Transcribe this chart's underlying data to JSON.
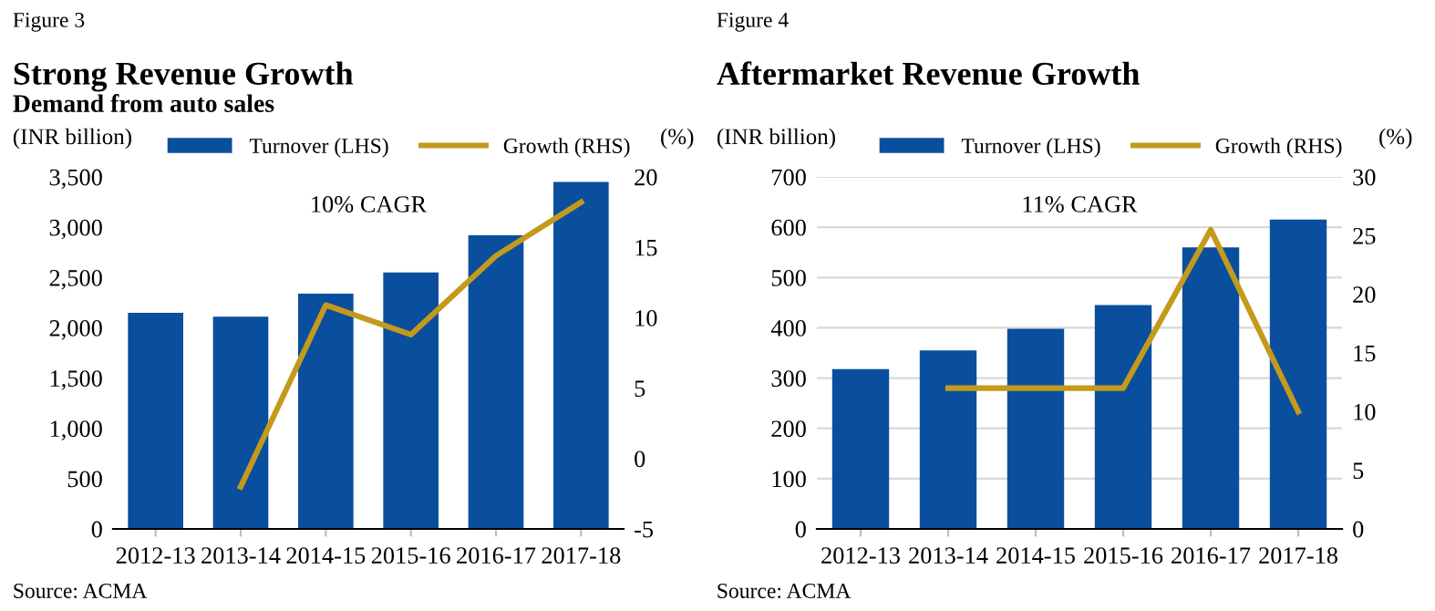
{
  "chart_data": [
    {
      "type": "bar",
      "title": "Strong Revenue Growth",
      "subtitle": "Demand from auto sales",
      "ylabel": "(INR billion)",
      "y2label": "(%)",
      "annotations": [
        "Figure 3",
        "10% CAGR",
        "Source: ACMA"
      ],
      "categories": [
        "2012-13",
        "2013-14",
        "2014-15",
        "2015-16",
        "2016-17",
        "2017-18"
      ],
      "series": [
        {
          "name": "Turnover (LHS)",
          "type": "bar",
          "color": "#0a4f9e",
          "values": [
            2150,
            2110,
            2340,
            2550,
            2920,
            3450
          ]
        },
        {
          "name": "Growth (RHS)",
          "type": "line",
          "axis": "y2",
          "color": "#c49a1c",
          "values": [
            null,
            -2.0,
            10.9,
            8.8,
            14.4,
            18.2
          ]
        }
      ],
      "ylim": [
        0,
        3500
      ],
      "yticks": [
        {
          "value": 0,
          "label": "0"
        },
        {
          "value": 500,
          "label": "500"
        },
        {
          "value": 1000,
          "label": "1,000"
        },
        {
          "value": 1500,
          "label": "1,500"
        },
        {
          "value": 2000,
          "label": "2,000"
        },
        {
          "value": 2500,
          "label": "2,500"
        },
        {
          "value": 3000,
          "label": "3,000"
        },
        {
          "value": 3500,
          "label": "3,500"
        }
      ],
      "y2lim": [
        -5,
        20
      ],
      "y2ticks": [
        -5,
        0,
        5,
        10,
        15,
        20
      ],
      "grid": false,
      "legend": "top"
    },
    {
      "type": "bar",
      "title": "Aftermarket Revenue Growth",
      "ylabel": "(INR billion)",
      "y2label": "(%)",
      "annotations": [
        "Figure 4",
        "11% CAGR",
        "Source: ACMA"
      ],
      "categories": [
        "2012-13",
        "2013-14",
        "2014-15",
        "2015-16",
        "2016-17",
        "2017-18"
      ],
      "series": [
        {
          "name": "Turnover (LHS)",
          "type": "bar",
          "color": "#0a4f9e",
          "values": [
            318,
            355,
            398,
            445,
            560,
            615
          ]
        },
        {
          "name": "Growth (RHS)",
          "type": "line",
          "axis": "y2",
          "color": "#c49a1c",
          "values": [
            null,
            12,
            12,
            12,
            25.5,
            10
          ]
        }
      ],
      "ylim": [
        0,
        700
      ],
      "yticks": [
        0,
        100,
        200,
        300,
        400,
        500,
        600,
        700
      ],
      "y2lim": [
        0,
        30
      ],
      "y2ticks": [
        0,
        5,
        10,
        15,
        20,
        25,
        30
      ],
      "grid": "y",
      "legend": "top"
    }
  ]
}
